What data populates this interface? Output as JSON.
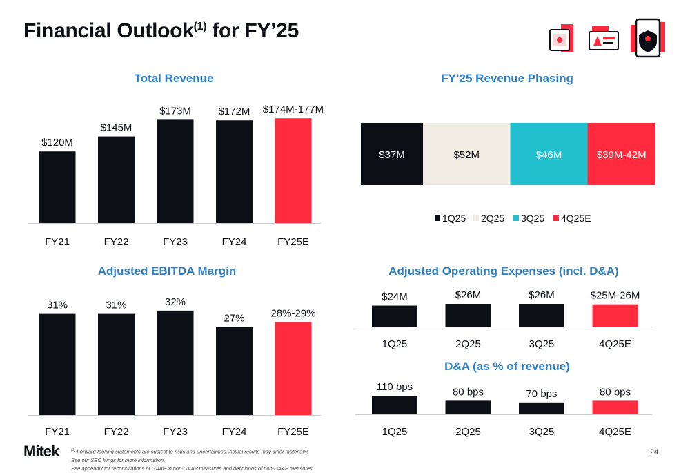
{
  "page": {
    "title_main": "Financial Outlook",
    "title_sup": "(1)",
    "title_end": " for FY’25",
    "page_number": "24",
    "logo": "Mitek",
    "footnote_sup": "(1)",
    "footnote_1": " Forward-looking statements are subject to risks and uncertainties. Actual results may differ materially.",
    "footnote_2": "See our SEC filings for more information.",
    "footnote_3": "See appendix for reconciliations of GAAP to non-GAAP measures and definitions of non-GAAP measures"
  },
  "colors": {
    "dark": "#0d0f17",
    "red": "#ff2a3d",
    "beige": "#f1ede4",
    "teal": "#22bfcf",
    "title_blue": "#2f7fc4"
  },
  "icons": [
    "document-check-icon",
    "id-card-alert-icon",
    "mobile-shield-icon"
  ],
  "chart_data": [
    {
      "type": "bar",
      "title": "Total Revenue",
      "categories": [
        "FY21",
        "FY22",
        "FY23",
        "FY24",
        "FY25E"
      ],
      "values": [
        120,
        145,
        173,
        172,
        175.5
      ],
      "labels": [
        "$120M",
        "$145M",
        "$173M",
        "$172M",
        "$174M-177M"
      ],
      "ylim": [
        0,
        185
      ],
      "highlight_last": true
    },
    {
      "type": "bar",
      "title": "FY’25 Revenue Phasing",
      "orientation": "stacked-horizontal",
      "categories": [
        "1Q25",
        "2Q25",
        "3Q25",
        "4Q25E"
      ],
      "values": [
        37,
        52,
        46,
        40.5
      ],
      "labels": [
        "$37M",
        "$52M",
        "$46M",
        "$39M-42M"
      ],
      "series_colors": [
        "#0d0f17",
        "#f1ede4",
        "#22bfcf",
        "#ff2a3d"
      ],
      "legend": [
        "1Q25",
        "2Q25",
        "3Q25",
        "4Q25E"
      ],
      "legend_position": "bottom"
    },
    {
      "type": "bar",
      "title": "Adjusted EBITDA Margin",
      "categories": [
        "FY21",
        "FY22",
        "FY23",
        "FY24",
        "FY25E"
      ],
      "values": [
        31,
        31,
        32,
        27,
        28.5
      ],
      "labels": [
        "31%",
        "31%",
        "32%",
        "27%",
        "28%-29%"
      ],
      "ylim": [
        0,
        36
      ],
      "highlight_last": true
    },
    {
      "type": "bar",
      "title": "Adjusted Operating Expenses (incl. D&A)",
      "categories": [
        "1Q25",
        "2Q25",
        "3Q25",
        "4Q25E"
      ],
      "values": [
        24,
        26,
        26,
        25.5
      ],
      "labels": [
        "$24M",
        "$26M",
        "$26M",
        "$25M-26M"
      ],
      "ylim": [
        0,
        26
      ],
      "highlight_last": true
    },
    {
      "type": "bar",
      "title": "D&A (as % of revenue)",
      "categories": [
        "1Q25",
        "2Q25",
        "3Q25",
        "4Q25E"
      ],
      "values": [
        110,
        80,
        70,
        80
      ],
      "labels": [
        "110 bps",
        "80 bps",
        "70 bps",
        "80 bps"
      ],
      "ylim": [
        0,
        110
      ],
      "highlight_last": true
    }
  ]
}
